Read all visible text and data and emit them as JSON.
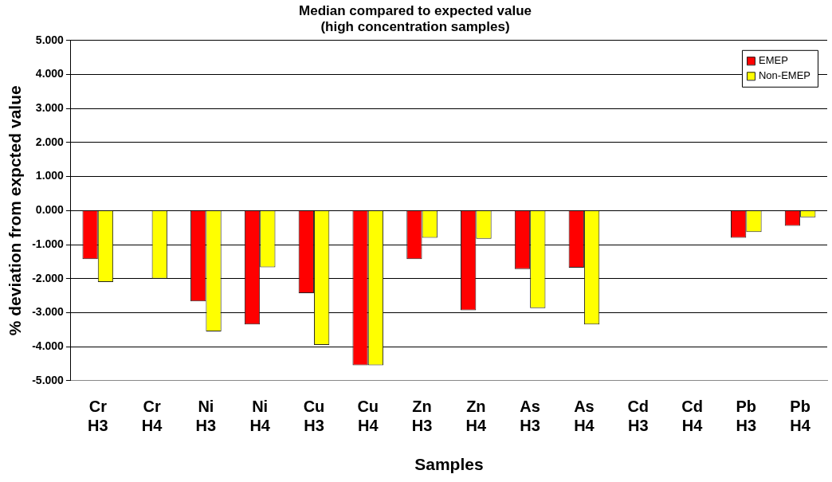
{
  "chart_data": {
    "type": "bar",
    "title": "Median compared to expected value\n(high concentration samples)",
    "xlabel": "Samples",
    "ylabel": "% deviation from expcted value",
    "categories": [
      "Cr H3",
      "Cr H4",
      "Ni H3",
      "Ni H4",
      "Cu H3",
      "Cu H4",
      "Zn H3",
      "Zn H4",
      "As H3",
      "As H4",
      "Cd H3",
      "Cd H4",
      "Pb H3",
      "Pb H4"
    ],
    "series": [
      {
        "name": "EMEP",
        "color": "#ff0000",
        "values": [
          -1.43,
          null,
          -2.67,
          -3.35,
          -2.43,
          -4.55,
          -1.43,
          -2.93,
          -1.72,
          -1.68,
          null,
          null,
          -0.8,
          -0.45
        ]
      },
      {
        "name": "Non-EMEP",
        "color": "#ffff00",
        "values": [
          -2.1,
          -2.0,
          -3.55,
          -1.67,
          -3.95,
          -4.55,
          -0.8,
          -0.83,
          -2.87,
          -3.35,
          null,
          null,
          -0.63,
          -0.2
        ]
      }
    ],
    "ylim": [
      -5,
      5
    ],
    "yticks": [
      {
        "value": -5,
        "label": "-5.000"
      },
      {
        "value": -4,
        "label": "-4.000"
      },
      {
        "value": -3,
        "label": "-3.000"
      },
      {
        "value": -2,
        "label": "-2.000"
      },
      {
        "value": -1,
        "label": "-1.000"
      },
      {
        "value": 0,
        "label": "0.000"
      },
      {
        "value": 1,
        "label": "1.000"
      },
      {
        "value": 2,
        "label": "2.000"
      },
      {
        "value": 3,
        "label": "3.000"
      },
      {
        "value": 4,
        "label": "4.000"
      },
      {
        "value": 5,
        "label": "5.000"
      }
    ],
    "grid": "y",
    "legend": "top right"
  }
}
